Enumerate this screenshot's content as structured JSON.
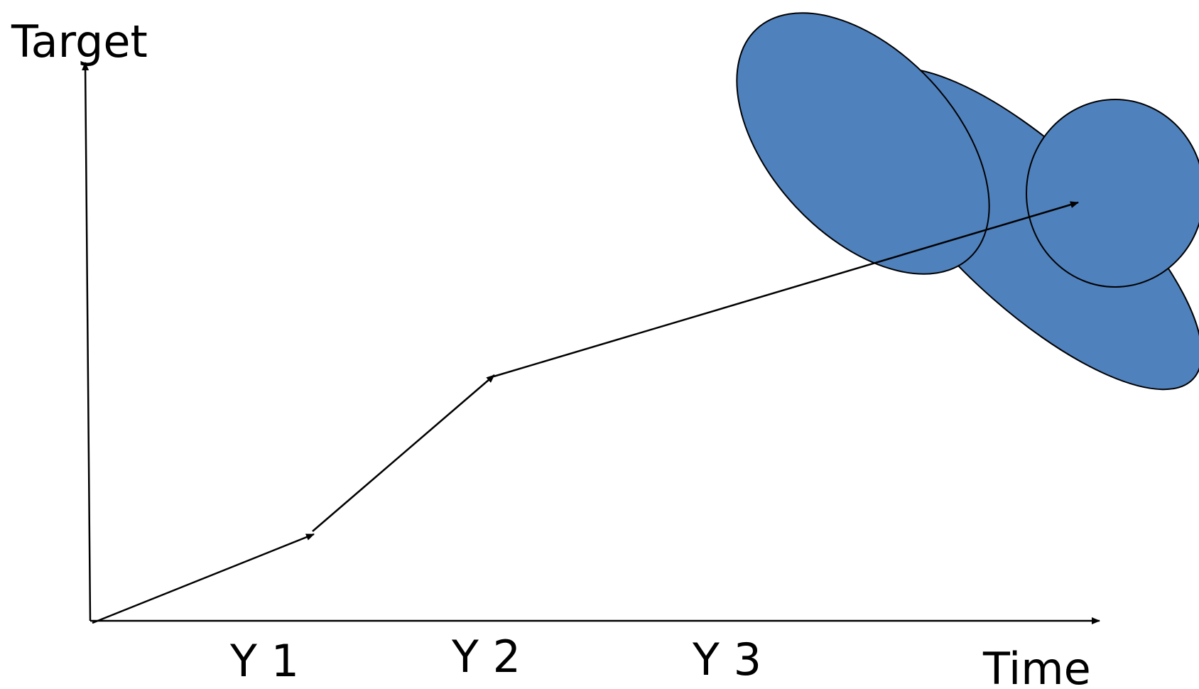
{
  "axes": {
    "y_title": "Target",
    "x_title": "Time"
  },
  "ticks": [
    "Y 1",
    "Y 2",
    "Y 3"
  ],
  "colors": {
    "blob_fill": "#4f81bd",
    "line": "#000000",
    "background": "#ffffff"
  }
}
